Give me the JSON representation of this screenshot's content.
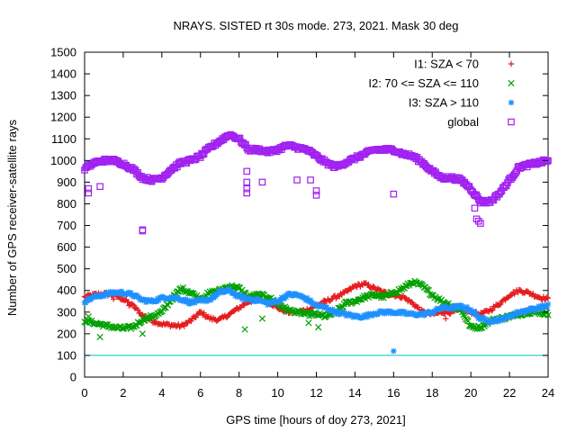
{
  "chart_data": {
    "type": "scatter",
    "title": "NRAYS. SISTED rt 30s mode. 273, 2021. Mask 30 deg",
    "xlabel": "GPS time [hours of doy 273, 2021]",
    "ylabel": "Number of GPS receiver-satellite rays",
    "xlim": [
      0,
      24
    ],
    "ylim": [
      0,
      1500
    ],
    "xticks": [
      "0",
      "2",
      "4",
      "6",
      "8",
      "10",
      "12",
      "14",
      "16",
      "18",
      "20",
      "22",
      "24"
    ],
    "yticks": [
      "0",
      "100",
      "200",
      "300",
      "400",
      "500",
      "600",
      "700",
      "800",
      "900",
      "1000",
      "1100",
      "1200",
      "1300",
      "1400",
      "1500"
    ],
    "threshold_line": {
      "y": 100,
      "color": "#00c0c0"
    },
    "legend_position": "top-right",
    "series": [
      {
        "name": "I1: SZA < 70",
        "marker": "+",
        "color": "#e41a1c",
        "x": [
          0,
          0.5,
          1,
          1.5,
          2,
          2.5,
          3,
          3.5,
          4,
          4.5,
          5,
          5.5,
          6,
          6.5,
          7,
          7.5,
          8,
          8.5,
          9,
          9.5,
          10,
          10.5,
          11,
          11.5,
          12,
          12.5,
          13,
          13.5,
          14,
          14.5,
          15,
          15.5,
          16,
          16.5,
          17,
          17.5,
          18,
          18.5,
          19,
          19.5,
          20,
          20.5,
          21,
          21.5,
          22,
          22.5,
          23,
          23.5,
          24
        ],
        "values": [
          370,
          380,
          385,
          380,
          360,
          330,
          285,
          260,
          245,
          240,
          235,
          260,
          300,
          270,
          265,
          290,
          320,
          350,
          360,
          350,
          320,
          300,
          300,
          310,
          330,
          350,
          370,
          390,
          420,
          430,
          410,
          390,
          380,
          370,
          340,
          300,
          290,
          300,
          300,
          310,
          300,
          290,
          310,
          340,
          380,
          400,
          390,
          370,
          360
        ],
        "outliers": [
          [
            1.5,
            360
          ],
          [
            2.3,
            330
          ],
          [
            18.7,
            270
          ]
        ]
      },
      {
        "name": "I2: 70 <= SZA <= 110",
        "marker": "x",
        "color": "#00a000",
        "x": [
          0,
          0.5,
          1,
          1.5,
          2,
          2.5,
          3,
          3.5,
          4,
          4.5,
          5,
          5.5,
          6,
          6.5,
          7,
          7.5,
          8,
          8.5,
          9,
          9.5,
          10,
          10.5,
          11,
          11.5,
          12,
          12.5,
          13,
          13.5,
          14,
          14.5,
          15,
          15.5,
          16,
          16.5,
          17,
          17.5,
          18,
          18.5,
          19,
          19.5,
          20,
          20.5,
          21,
          21.5,
          22,
          22.5,
          23,
          23.5,
          24
        ],
        "values": [
          260,
          250,
          240,
          230,
          225,
          230,
          265,
          280,
          300,
          360,
          410,
          390,
          360,
          390,
          400,
          420,
          410,
          370,
          380,
          370,
          340,
          310,
          300,
          290,
          290,
          280,
          300,
          340,
          350,
          370,
          380,
          370,
          390,
          410,
          440,
          420,
          380,
          350,
          330,
          310,
          230,
          230,
          260,
          270,
          280,
          290,
          300,
          300,
          290
        ],
        "outliers": [
          [
            0.2,
            280
          ],
          [
            0.8,
            185
          ],
          [
            3.0,
            200
          ],
          [
            8.3,
            220
          ],
          [
            9.2,
            270
          ],
          [
            11.6,
            250
          ],
          [
            12.1,
            230
          ]
        ]
      },
      {
        "name": "I3: SZA > 110",
        "marker": "*",
        "color": "#1e90ff",
        "x": [
          0,
          0.5,
          1,
          1.5,
          2,
          2.5,
          3,
          3.5,
          4,
          4.5,
          5,
          5.5,
          6,
          6.5,
          7,
          7.5,
          8,
          8.5,
          9,
          9.5,
          10,
          10.5,
          11,
          11.5,
          12,
          12.5,
          13,
          13.5,
          14,
          14.5,
          15,
          15.5,
          16,
          16.5,
          17,
          17.5,
          18,
          18.5,
          19,
          19.5,
          20,
          20.5,
          21,
          21.5,
          22,
          22.5,
          23,
          23.5,
          24
        ],
        "values": [
          350,
          370,
          380,
          390,
          390,
          380,
          355,
          350,
          365,
          370,
          360,
          345,
          350,
          360,
          390,
          400,
          370,
          360,
          355,
          340,
          350,
          380,
          380,
          360,
          330,
          320,
          300,
          290,
          280,
          280,
          295,
          300,
          300,
          295,
          290,
          290,
          300,
          320,
          320,
          325,
          310,
          270,
          260,
          265,
          280,
          300,
          310,
          320,
          330
        ],
        "outliers": [
          [
            16.0,
            120
          ]
        ]
      },
      {
        "name": "global",
        "marker": "square",
        "color": "#a020f0",
        "x": [
          0,
          0.5,
          1,
          1.5,
          2,
          2.5,
          3,
          3.5,
          4,
          4.5,
          5,
          5.5,
          6,
          6.5,
          7,
          7.5,
          8,
          8.5,
          9,
          9.5,
          10,
          10.5,
          11,
          11.5,
          12,
          12.5,
          13,
          13.5,
          14,
          14.5,
          15,
          15.5,
          16,
          16.5,
          17,
          17.5,
          18,
          18.5,
          19,
          19.5,
          20,
          20.5,
          21,
          21.5,
          22,
          22.5,
          23,
          23.5,
          24
        ],
        "values": [
          960,
          990,
          1000,
          1000,
          985,
          960,
          920,
          910,
          920,
          960,
          990,
          1000,
          1020,
          1060,
          1090,
          1120,
          1100,
          1050,
          1050,
          1040,
          1050,
          1070,
          1060,
          1050,
          1020,
          990,
          970,
          990,
          1010,
          1030,
          1050,
          1050,
          1050,
          1030,
          1020,
          990,
          950,
          920,
          920,
          910,
          870,
          810,
          810,
          850,
          910,
          970,
          980,
          990,
          1000
        ],
        "outliers": [
          [
            0.2,
            870
          ],
          [
            0.2,
            850
          ],
          [
            0.8,
            880
          ],
          [
            3.0,
            680
          ],
          [
            3.0,
            675
          ],
          [
            8.4,
            950
          ],
          [
            8.4,
            900
          ],
          [
            8.4,
            870
          ],
          [
            8.4,
            850
          ],
          [
            9.2,
            900
          ],
          [
            11.0,
            910
          ],
          [
            11.7,
            910
          ],
          [
            12.0,
            860
          ],
          [
            12.0,
            840
          ],
          [
            16.0,
            845
          ],
          [
            20.2,
            780
          ],
          [
            20.3,
            730
          ],
          [
            20.4,
            720
          ],
          [
            20.5,
            710
          ]
        ]
      }
    ]
  }
}
